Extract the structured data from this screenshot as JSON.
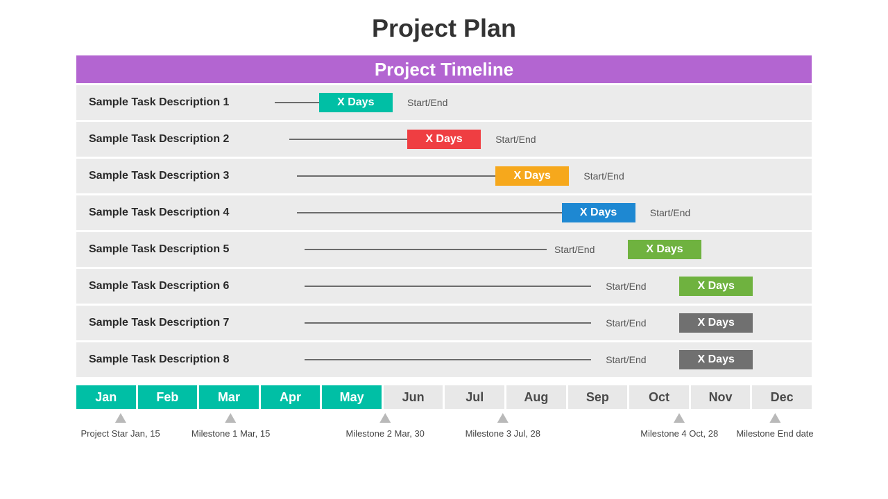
{
  "title": "Project Plan",
  "timeline_header": {
    "text": "Project Timeline",
    "bg": "#b365d1"
  },
  "row_bg": "#ebebeb",
  "line_color": "#6b6b6b",
  "tasks": [
    {
      "label": "Sample Task Description 1",
      "line_start_pct": 27,
      "line_end_pct": 33,
      "badge_start_pct": 33,
      "badge_width_pct": 10,
      "badge_text": "X Days",
      "badge_color": "#00bfa5",
      "startend_pct": 45,
      "startend_text": "Start/End"
    },
    {
      "label": "Sample Task Description 2",
      "line_start_pct": 29,
      "line_end_pct": 45,
      "badge_start_pct": 45,
      "badge_width_pct": 10,
      "badge_text": "X Days",
      "badge_color": "#ef3e42",
      "startend_pct": 57,
      "startend_text": "Start/End"
    },
    {
      "label": "Sample Task Description 3",
      "line_start_pct": 30,
      "line_end_pct": 57,
      "badge_start_pct": 57,
      "badge_width_pct": 10,
      "badge_text": "X Days",
      "badge_color": "#f6a81c",
      "startend_pct": 69,
      "startend_text": "Start/End"
    },
    {
      "label": "Sample Task Description 4",
      "line_start_pct": 30,
      "line_end_pct": 66,
      "badge_start_pct": 66,
      "badge_width_pct": 10,
      "badge_text": "X Days",
      "badge_color": "#1e88d2",
      "startend_pct": 78,
      "startend_text": "Start/End"
    },
    {
      "label": "Sample Task Description 5",
      "line_start_pct": 31,
      "line_end_pct": 64,
      "badge_start_pct": 75,
      "badge_width_pct": 10,
      "badge_text": "X Days",
      "badge_color": "#6fb23f",
      "startend_pct": 65,
      "startend_text": "Start/End"
    },
    {
      "label": "Sample Task Description 6",
      "line_start_pct": 31,
      "line_end_pct": 70,
      "badge_start_pct": 82,
      "badge_width_pct": 10,
      "badge_text": "X Days",
      "badge_color": "#6fb23f",
      "startend_pct": 72,
      "startend_text": "Start/End"
    },
    {
      "label": "Sample Task Description 7",
      "line_start_pct": 31,
      "line_end_pct": 70,
      "badge_start_pct": 82,
      "badge_width_pct": 10,
      "badge_text": "X Days",
      "badge_color": "#707070",
      "startend_pct": 72,
      "startend_text": "Start/End"
    },
    {
      "label": "Sample Task Description 8",
      "line_start_pct": 31,
      "line_end_pct": 70,
      "badge_start_pct": 82,
      "badge_width_pct": 10,
      "badge_text": "X Days",
      "badge_color": "#707070",
      "startend_pct": 72,
      "startend_text": "Start/End"
    }
  ],
  "months": {
    "highlight_bg": "#00bfa5",
    "highlight_fg": "#ffffff",
    "normal_bg": "#e8e8e8",
    "normal_fg": "#4a4a4a",
    "items": [
      {
        "label": "Jan",
        "highlight": true
      },
      {
        "label": "Feb",
        "highlight": true
      },
      {
        "label": "Mar",
        "highlight": true
      },
      {
        "label": "Apr",
        "highlight": true
      },
      {
        "label": "May",
        "highlight": true
      },
      {
        "label": "Jun",
        "highlight": false
      },
      {
        "label": "Jul",
        "highlight": false
      },
      {
        "label": "Aug",
        "highlight": false
      },
      {
        "label": "Sep",
        "highlight": false
      },
      {
        "label": "Oct",
        "highlight": false
      },
      {
        "label": "Nov",
        "highlight": false
      },
      {
        "label": "Dec",
        "highlight": false
      }
    ]
  },
  "milestones": [
    {
      "pos_pct": 6,
      "label": "Project Star Jan, 15"
    },
    {
      "pos_pct": 21,
      "label": "Milestone 1 Mar, 15"
    },
    {
      "pos_pct": 42,
      "label": "Milestone 2 Mar, 30"
    },
    {
      "pos_pct": 58,
      "label": "Milestone 3 Jul, 28"
    },
    {
      "pos_pct": 82,
      "label": "Milestone 4 Oct, 28"
    },
    {
      "pos_pct": 95,
      "label": "Milestone End date"
    }
  ]
}
